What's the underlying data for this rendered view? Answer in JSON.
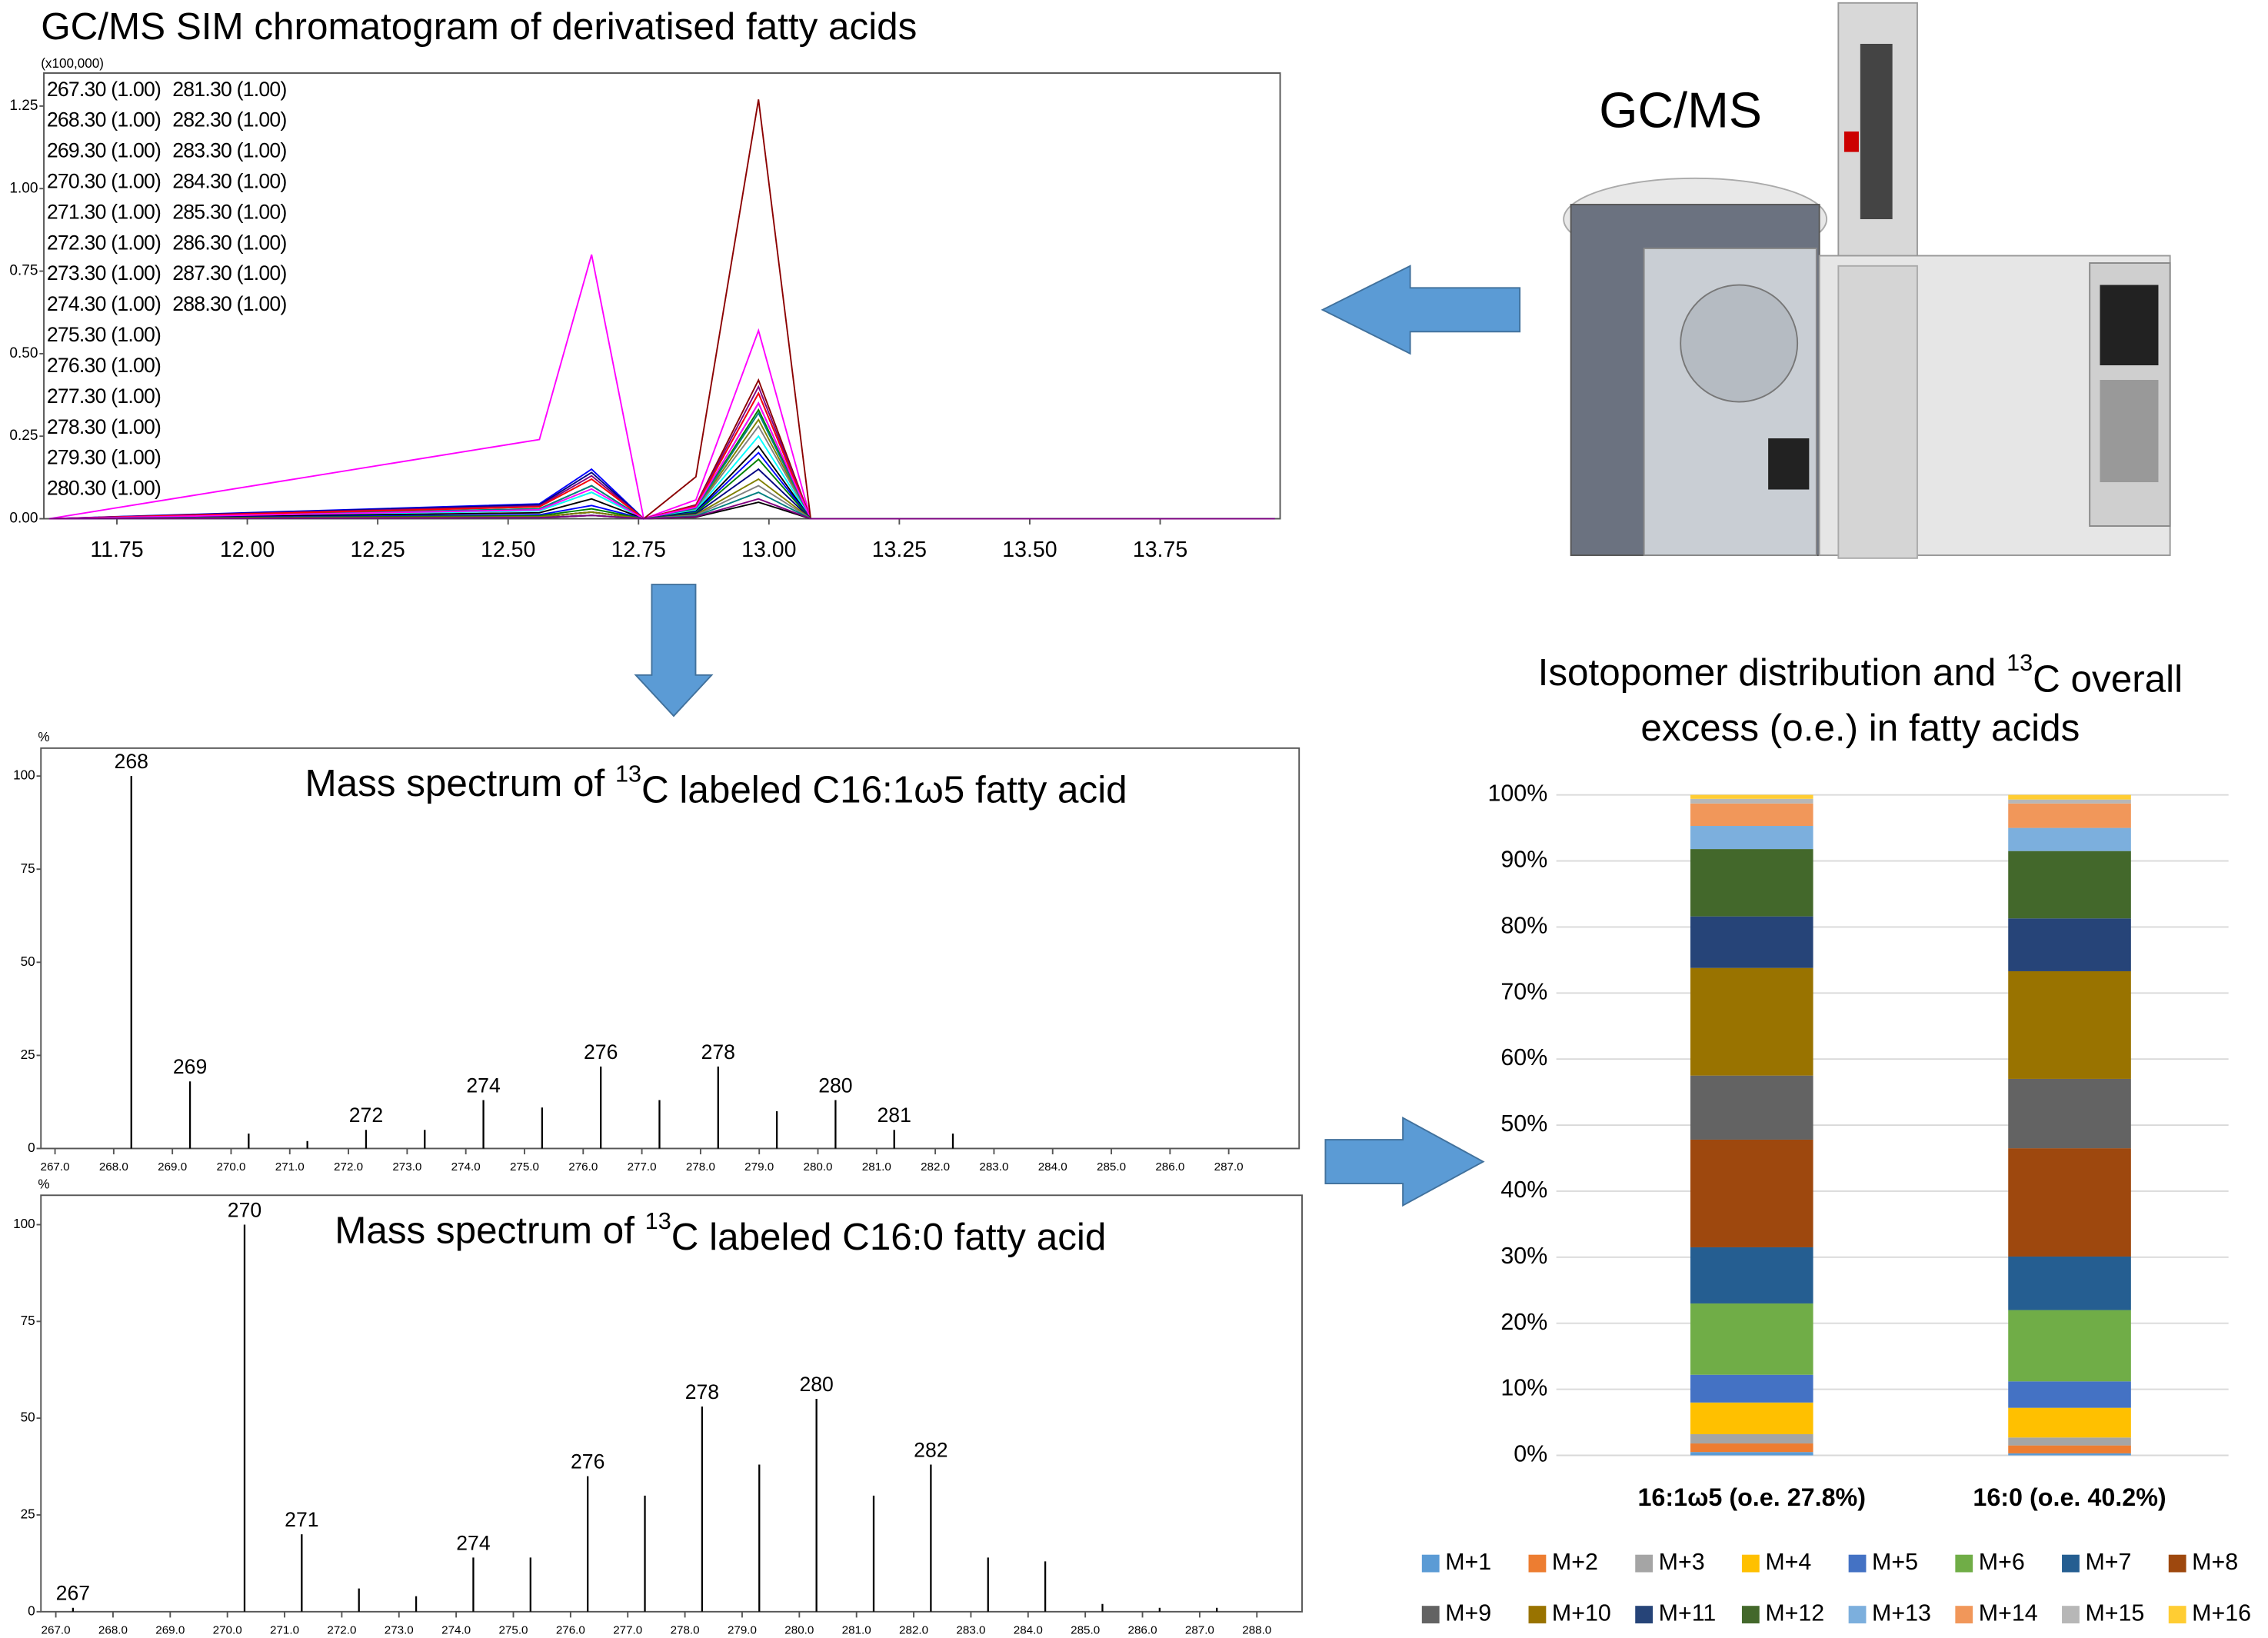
{
  "image_label": "GC/MS",
  "chart_data": [
    {
      "type": "line",
      "title": "GC/MS SIM chromatogram of derivatised fatty acids",
      "y_label": "(x100,000)",
      "x": [
        11.62,
        12.56,
        12.66,
        12.76,
        12.86,
        12.98,
        13.08,
        13.97
      ],
      "xlim": [
        11.61,
        13.98
      ],
      "ylim": [
        0,
        1.35
      ],
      "grid": false,
      "xticks": [
        11.75,
        {
          "value": 12,
          "label": "12.00"
        },
        12.25,
        {
          "value": 12.5,
          "label": "12.50"
        },
        12.75,
        {
          "value": 13,
          "label": "13.00"
        },
        13.25,
        {
          "value": 13.5,
          "label": "13.50"
        },
        13.75
      ],
      "yticks": [
        {
          "value": 0,
          "label": "0.00"
        },
        {
          "value": 0.25,
          "label": "0.25"
        },
        {
          "value": 0.5,
          "label": "0.50"
        },
        {
          "value": 0.75,
          "label": "0.75"
        },
        {
          "value": 1,
          "label": "1.00"
        },
        {
          "value": 1.25,
          "label": "1.25"
        }
      ],
      "series": [
        {
          "name": "267.30 (1.00)",
          "color": "#000000",
          "values": [
            0,
            0.006,
            0.02,
            0,
            0.005,
            0.05,
            0,
            0
          ]
        },
        {
          "name": "268.30 (1.00)",
          "color": "#ff00ff",
          "values": [
            0,
            0.24,
            0.8,
            0,
            0.057,
            0.57,
            0,
            0
          ]
        },
        {
          "name": "269.30 (1.00)",
          "color": "#0000ff",
          "values": [
            0,
            0.045,
            0.15,
            0,
            0.038,
            0.38,
            0,
            0
          ]
        },
        {
          "name": "270.30 (1.00)",
          "color": "#8b0000",
          "values": [
            0,
            0.006,
            0.02,
            0,
            0.042,
            0.42,
            0,
            0
          ]
        },
        {
          "name": "271.30 (1.00)",
          "color": "#008000",
          "values": [
            0,
            0.03,
            0.1,
            0,
            0.033,
            0.33,
            0,
            0
          ]
        },
        {
          "name": "272.30 (1.00)",
          "color": "#000080",
          "values": [
            0,
            0.042,
            0.14,
            0,
            0.035,
            0.35,
            0,
            0
          ]
        },
        {
          "name": "273.30 (1.00)",
          "color": "#808000",
          "values": [
            0,
            0.024,
            0.08,
            0,
            0.03,
            0.3,
            0,
            0
          ]
        },
        {
          "name": "274.30 (1.00)",
          "color": "#808080",
          "values": [
            0,
            0.036,
            0.12,
            0,
            0.028,
            0.28,
            0,
            0
          ]
        },
        {
          "name": "275.30 (1.00)",
          "color": "#008080",
          "values": [
            0,
            0.03,
            0.1,
            0,
            0.032,
            0.32,
            0,
            0
          ]
        },
        {
          "name": "276.30 (1.00)",
          "color": "#800080",
          "values": [
            0,
            0.039,
            0.13,
            0,
            0.04,
            0.4,
            0,
            0
          ]
        },
        {
          "name": "277.30 (1.00)",
          "color": "#00ffff",
          "values": [
            0,
            0.024,
            0.08,
            0,
            0.025,
            0.25,
            0,
            0
          ]
        },
        {
          "name": "278.30 (1.00)",
          "color": "#ff0000",
          "values": [
            0,
            0.036,
            0.12,
            0,
            0.038,
            0.38,
            0,
            0
          ]
        },
        {
          "name": "279.30 (1.00)",
          "color": "#000000",
          "values": [
            0,
            0.018,
            0.06,
            0,
            0.022,
            0.22,
            0,
            0
          ]
        },
        {
          "name": "280.30 (1.00)",
          "color": "#ff00ff",
          "values": [
            0,
            0.027,
            0.09,
            0,
            0.035,
            0.35,
            0,
            0
          ]
        },
        {
          "name": "281.30 (1.00)",
          "color": "#0000ff",
          "values": [
            0,
            0.012,
            0.04,
            0,
            0.02,
            0.2,
            0,
            0
          ]
        },
        {
          "name": "282.30 (1.00)",
          "color": "#8b0000",
          "values": [
            0,
            0.003,
            0.01,
            0,
            0.127,
            1.27,
            0,
            0
          ]
        },
        {
          "name": "283.30 (1.00)",
          "color": "#008000",
          "values": [
            0,
            0.009,
            0.03,
            0,
            0.018,
            0.18,
            0,
            0
          ]
        },
        {
          "name": "284.30 (1.00)",
          "color": "#000080",
          "values": [
            0,
            0.006,
            0.02,
            0,
            0.015,
            0.15,
            0,
            0
          ]
        },
        {
          "name": "285.30 (1.00)",
          "color": "#808000",
          "values": [
            0,
            0.006,
            0.02,
            0,
            0.012,
            0.12,
            0,
            0
          ]
        },
        {
          "name": "286.30 (1.00)",
          "color": "#808080",
          "values": [
            0,
            0.003,
            0.01,
            0,
            0.01,
            0.1,
            0,
            0
          ]
        },
        {
          "name": "287.30 (1.00)",
          "color": "#008080",
          "values": [
            0,
            0.003,
            0.01,
            0,
            0.008,
            0.08,
            0,
            0
          ]
        },
        {
          "name": "288.30 (1.00)",
          "color": "#800080",
          "values": [
            0,
            0.003,
            0.01,
            0,
            0.006,
            0.06,
            0,
            0
          ]
        }
      ]
    },
    {
      "type": "spectrum",
      "title_parts": [
        "Mass spectrum of ",
        "13",
        "C labeled C16:1ω5 fatty acid"
      ],
      "y_label": "%",
      "color": "#000000",
      "label_color": "#0000ff",
      "x": [
        268.3,
        269.3,
        270.3,
        271.3,
        272.3,
        273.3,
        274.3,
        275.3,
        276.3,
        277.3,
        278.3,
        279.3,
        280.3,
        281.3,
        282.3
      ],
      "values": [
        100,
        18,
        4,
        2,
        5,
        5,
        13,
        11,
        22,
        13,
        22,
        10,
        13,
        5,
        4
      ],
      "x_value_labels": [
        "268",
        "269",
        null,
        null,
        "272",
        null,
        "274",
        null,
        "276",
        null,
        "278",
        null,
        "280",
        "281",
        null
      ],
      "xlim": [
        266.76,
        288.2
      ],
      "ylim": [
        0,
        107.5
      ],
      "xticks": [
        {
          "value": 267,
          "label": "267.0"
        },
        {
          "value": 268,
          "label": "268.0"
        },
        {
          "value": 269,
          "label": "269.0"
        },
        {
          "value": 270,
          "label": "270.0"
        },
        {
          "value": 271,
          "label": "271.0"
        },
        {
          "value": 272,
          "label": "272.0"
        },
        {
          "value": 273,
          "label": "273.0"
        },
        {
          "value": 274,
          "label": "274.0"
        },
        {
          "value": 275,
          "label": "275.0"
        },
        {
          "value": 276,
          "label": "276.0"
        },
        {
          "value": 277,
          "label": "277.0"
        },
        {
          "value": 278,
          "label": "278.0"
        },
        {
          "value": 279,
          "label": "279.0"
        },
        {
          "value": 280,
          "label": "280.0"
        },
        {
          "value": 281,
          "label": "281.0"
        },
        {
          "value": 282,
          "label": "282.0"
        },
        {
          "value": 283,
          "label": "283.0"
        },
        {
          "value": 284,
          "label": "284.0"
        },
        {
          "value": 285,
          "label": "285.0"
        },
        {
          "value": 286,
          "label": "286.0"
        },
        {
          "value": 287,
          "label": "287.0"
        }
      ],
      "yticks": [
        0,
        25,
        50,
        75,
        100
      ]
    },
    {
      "type": "spectrum",
      "title_parts": [
        "Mass spectrum of ",
        "13",
        "C labeled C16:0 fatty acid"
      ],
      "y_label": "%",
      "color": "#000000",
      "label_color": "#0000ff",
      "x": [
        267.3,
        270.3,
        271.3,
        272.3,
        273.3,
        274.3,
        275.3,
        276.3,
        277.3,
        278.3,
        279.3,
        280.3,
        281.3,
        282.3,
        283.3,
        284.3,
        285.3,
        286.3,
        287.3
      ],
      "values": [
        1,
        100,
        20,
        6,
        4,
        14,
        14,
        35,
        30,
        53,
        38,
        55,
        30,
        38,
        14,
        13,
        2,
        1,
        1
      ],
      "x_value_labels": [
        "267",
        "270",
        "271",
        null,
        null,
        "274",
        null,
        "276",
        null,
        "278",
        null,
        "280",
        null,
        "282",
        null,
        null,
        null,
        null,
        null
      ],
      "xlim": [
        266.74,
        288.79
      ],
      "ylim": [
        0,
        107.6
      ],
      "xticks": [
        {
          "value": 267,
          "label": "267.0"
        },
        {
          "value": 268,
          "label": "268.0"
        },
        {
          "value": 269,
          "label": "269.0"
        },
        {
          "value": 270,
          "label": "270.0"
        },
        {
          "value": 271,
          "label": "271.0"
        },
        {
          "value": 272,
          "label": "272.0"
        },
        {
          "value": 273,
          "label": "273.0"
        },
        {
          "value": 274,
          "label": "274.0"
        },
        {
          "value": 275,
          "label": "275.0"
        },
        {
          "value": 276,
          "label": "276.0"
        },
        {
          "value": 277,
          "label": "277.0"
        },
        {
          "value": 278,
          "label": "278.0"
        },
        {
          "value": 279,
          "label": "279.0"
        },
        {
          "value": 280,
          "label": "280.0"
        },
        {
          "value": 281,
          "label": "281.0"
        },
        {
          "value": 282,
          "label": "282.0"
        },
        {
          "value": 283,
          "label": "283.0"
        },
        {
          "value": 284,
          "label": "284.0"
        },
        {
          "value": 285,
          "label": "285.0"
        },
        {
          "value": 286,
          "label": "286.0"
        },
        {
          "value": 287,
          "label": "287.0"
        },
        {
          "value": 288,
          "label": "288.0"
        }
      ],
      "yticks": [
        0,
        25,
        50,
        75,
        100
      ]
    },
    {
      "type": "stacked_bar",
      "title_lines": [
        [
          "Isotopomer distribution and ",
          "13",
          "C overall"
        ],
        [
          "excess (o.e.) in fatty acids"
        ]
      ],
      "categories": [
        "16:1ω5 (o.e. 27.8%)",
        "16:0 (o.e. 40.2%)"
      ],
      "ylim": [
        0,
        100
      ],
      "grid": true,
      "legend": "bottom",
      "yticks": [
        {
          "value": 0,
          "label": "0%"
        },
        {
          "value": 10,
          "label": "10%"
        },
        {
          "value": 20,
          "label": "20%"
        },
        {
          "value": 30,
          "label": "30%"
        },
        {
          "value": 40,
          "label": "40%"
        },
        {
          "value": 50,
          "label": "50%"
        },
        {
          "value": 60,
          "label": "60%"
        },
        {
          "value": 70,
          "label": "70%"
        },
        {
          "value": 80,
          "label": "80%"
        },
        {
          "value": 90,
          "label": "90%"
        },
        {
          "value": 100,
          "label": "100%"
        }
      ],
      "series": [
        {
          "name": "M+1",
          "color": "#5b9bd5",
          "values": [
            0.5,
            0.3
          ]
        },
        {
          "name": "M+2",
          "color": "#ed7d31",
          "values": [
            1.3,
            1.2
          ]
        },
        {
          "name": "M+3",
          "color": "#a5a5a5",
          "values": [
            1.4,
            1.2
          ]
        },
        {
          "name": "M+4",
          "color": "#ffc000",
          "values": [
            4.8,
            4.5
          ]
        },
        {
          "name": "M+5",
          "color": "#4472c4",
          "values": [
            4.2,
            4.0
          ]
        },
        {
          "name": "M+6",
          "color": "#70ad47",
          "values": [
            10.8,
            10.8
          ]
        },
        {
          "name": "M+7",
          "color": "#255e91",
          "values": [
            8.5,
            8.1
          ]
        },
        {
          "name": "M+8",
          "color": "#9e480e",
          "values": [
            16.3,
            16.4
          ]
        },
        {
          "name": "M+9",
          "color": "#636363",
          "values": [
            9.7,
            10.5
          ]
        },
        {
          "name": "M+10",
          "color": "#997300",
          "values": [
            16.3,
            16.3
          ]
        },
        {
          "name": "M+11",
          "color": "#264478",
          "values": [
            7.8,
            8.0
          ]
        },
        {
          "name": "M+12",
          "color": "#43682b",
          "values": [
            10.2,
            10.2
          ]
        },
        {
          "name": "M+13",
          "color": "#7cafdd",
          "values": [
            3.5,
            3.5
          ]
        },
        {
          "name": "M+14",
          "color": "#f1975a",
          "values": [
            3.4,
            3.7
          ]
        },
        {
          "name": "M+15",
          "color": "#b7b7b7",
          "values": [
            0.7,
            0.6
          ]
        },
        {
          "name": "M+16",
          "color": "#ffcd33",
          "values": [
            0.6,
            0.7
          ]
        }
      ]
    }
  ]
}
